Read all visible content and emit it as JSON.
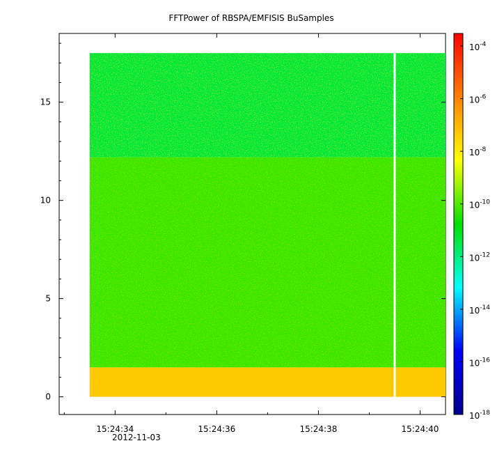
{
  "chart_data": {
    "type": "heatmap",
    "title": "FFTPower of RBSPA/EMFISIS  BuSamples",
    "xlabel": "",
    "ylabel": "",
    "x_range": [
      "15:24:32.9",
      "15:24:40.5"
    ],
    "y_range": [
      -0.9,
      18.5
    ],
    "x_ticks": [
      {
        "value": "15:24:34",
        "label": "15:24:34"
      },
      {
        "value": "15:24:36",
        "label": "15:24:36"
      },
      {
        "value": "15:24:38",
        "label": "15:24:38"
      },
      {
        "value": "15:24:40",
        "label": "15:24:40"
      }
    ],
    "x_date_label": "2012-11-03",
    "y_ticks": [
      0,
      5,
      10,
      15
    ],
    "data_extent": {
      "x": [
        "15:24:33.5",
        "15:24:40.5"
      ],
      "y": [
        0,
        17.5
      ]
    },
    "gap_at": "15:24:39.5",
    "bands": [
      {
        "y": [
          0,
          1.5
        ],
        "level_log10": -7.3,
        "description": "orange"
      },
      {
        "y": [
          1.5,
          12.2
        ],
        "level_log10": -10.2,
        "description": "green"
      },
      {
        "y": [
          12.2,
          17.5
        ],
        "level_log10": -11.3,
        "description": "teal-green"
      }
    ],
    "colorbar": {
      "scale": "log",
      "range": [
        "1e-18",
        "3e-4"
      ],
      "ticks": [
        {
          "exp": -4,
          "label": "10",
          "sup": "-4"
        },
        {
          "exp": -6,
          "label": "10",
          "sup": "-6"
        },
        {
          "exp": -8,
          "label": "10",
          "sup": "-8"
        },
        {
          "exp": -10,
          "label": "10",
          "sup": "-10"
        },
        {
          "exp": -12,
          "label": "10",
          "sup": "-12"
        },
        {
          "exp": -14,
          "label": "10",
          "sup": "-14"
        },
        {
          "exp": -16,
          "label": "10",
          "sup": "-16"
        },
        {
          "exp": -18,
          "label": "10",
          "sup": "-18"
        }
      ],
      "colors": [
        "#00008b",
        "#0000ff",
        "#00ffff",
        "#00e000",
        "#ffff00",
        "#ff8000",
        "#ff0000"
      ]
    }
  }
}
